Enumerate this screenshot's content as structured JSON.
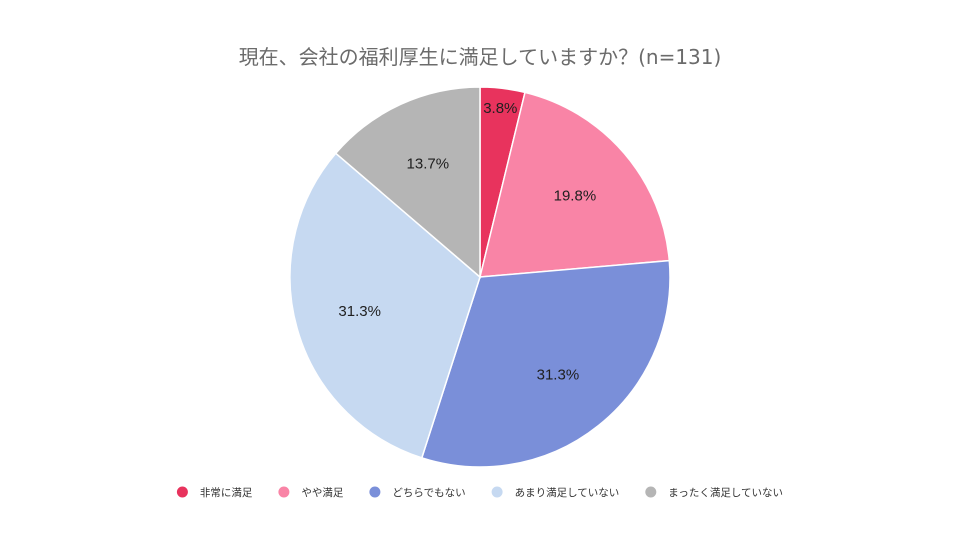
{
  "chart_data": {
    "type": "pie",
    "title": "現在、会社の福利厚生に満足していますか？(n=131)",
    "slices": [
      {
        "label": "非常に満足",
        "value": 3.8,
        "display": "3.8%",
        "color": "#e8335d"
      },
      {
        "label": "やや満足",
        "value": 19.8,
        "display": "19.8%",
        "color": "#f984a6"
      },
      {
        "label": "どちらでもない",
        "value": 31.3,
        "display": "31.3%",
        "color": "#7a8fd9"
      },
      {
        "label": "あまり満足していない",
        "value": 31.3,
        "display": "31.3%",
        "color": "#c6d9f1"
      },
      {
        "label": "まったく満足していない",
        "value": 13.7,
        "display": "13.7%",
        "color": "#b5b5b5"
      }
    ],
    "start_angle": "12 o'clock",
    "direction": "clockwise",
    "legend_position": "bottom"
  }
}
